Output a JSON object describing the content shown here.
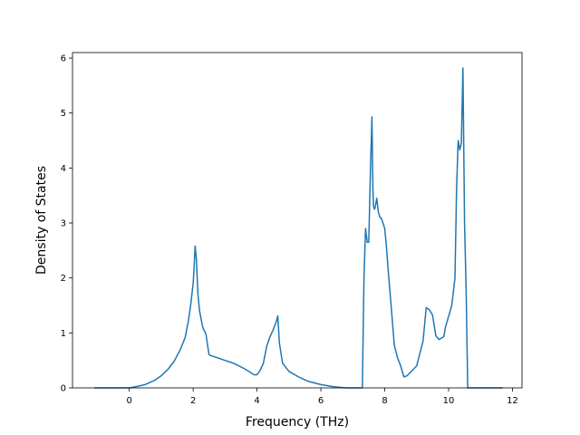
{
  "chart_data": {
    "type": "line",
    "xlabel": "Frequency (THz)",
    "ylabel": "Density of States",
    "xlim": [
      -1.78,
      12.3
    ],
    "ylim": [
      0,
      6.1
    ],
    "xticks": [
      0,
      2,
      4,
      6,
      8,
      10,
      12
    ],
    "yticks": [
      0,
      1,
      2,
      3,
      4,
      5,
      6
    ],
    "grid": false,
    "series": [
      {
        "color": "#1f77b4",
        "x": [
          -1.1,
          0.0,
          0.2,
          0.5,
          0.8,
          1.0,
          1.2,
          1.4,
          1.6,
          1.75,
          1.85,
          1.92,
          2.0,
          2.03,
          2.06,
          2.1,
          2.15,
          2.2,
          2.3,
          2.4,
          2.45,
          2.5,
          2.7,
          3.0,
          3.3,
          3.6,
          3.8,
          3.9,
          4.0,
          4.05,
          4.1,
          4.2,
          4.3,
          4.4,
          4.5,
          4.6,
          4.65,
          4.7,
          4.8,
          5.0,
          5.3,
          5.6,
          6.0,
          6.4,
          6.8,
          7.1,
          7.3,
          7.35,
          7.4,
          7.45,
          7.5,
          7.55,
          7.6,
          7.63,
          7.65,
          7.68,
          7.7,
          7.75,
          7.8,
          7.85,
          7.9,
          8.0,
          8.05,
          8.1,
          8.2,
          8.3,
          8.4,
          8.5,
          8.6,
          8.7,
          8.8,
          9.0,
          9.2,
          9.3,
          9.4,
          9.5,
          9.6,
          9.7,
          9.85,
          9.9,
          10.0,
          10.1,
          10.2,
          10.25,
          10.3,
          10.35,
          10.4,
          10.45,
          10.5,
          10.55,
          10.6,
          10.65,
          11.7
        ],
        "y": [
          0.0,
          0.0,
          0.02,
          0.06,
          0.14,
          0.22,
          0.33,
          0.48,
          0.7,
          0.92,
          1.22,
          1.5,
          1.9,
          2.2,
          2.58,
          2.35,
          1.7,
          1.4,
          1.1,
          0.98,
          0.78,
          0.6,
          0.56,
          0.5,
          0.44,
          0.35,
          0.28,
          0.24,
          0.24,
          0.28,
          0.32,
          0.45,
          0.75,
          0.92,
          1.05,
          1.2,
          1.31,
          0.82,
          0.45,
          0.3,
          0.2,
          0.12,
          0.06,
          0.02,
          0.0,
          0.0,
          0.0,
          2.0,
          2.9,
          2.65,
          2.65,
          3.9,
          4.93,
          3.6,
          3.3,
          3.25,
          3.28,
          3.45,
          3.2,
          3.1,
          3.08,
          2.9,
          2.6,
          2.2,
          1.5,
          0.78,
          0.55,
          0.4,
          0.2,
          0.22,
          0.28,
          0.4,
          0.85,
          1.46,
          1.42,
          1.32,
          0.95,
          0.88,
          0.93,
          1.1,
          1.3,
          1.5,
          2.0,
          3.6,
          4.5,
          4.33,
          4.45,
          5.82,
          3.0,
          1.8,
          0.0,
          0.0,
          0.0
        ]
      }
    ]
  }
}
